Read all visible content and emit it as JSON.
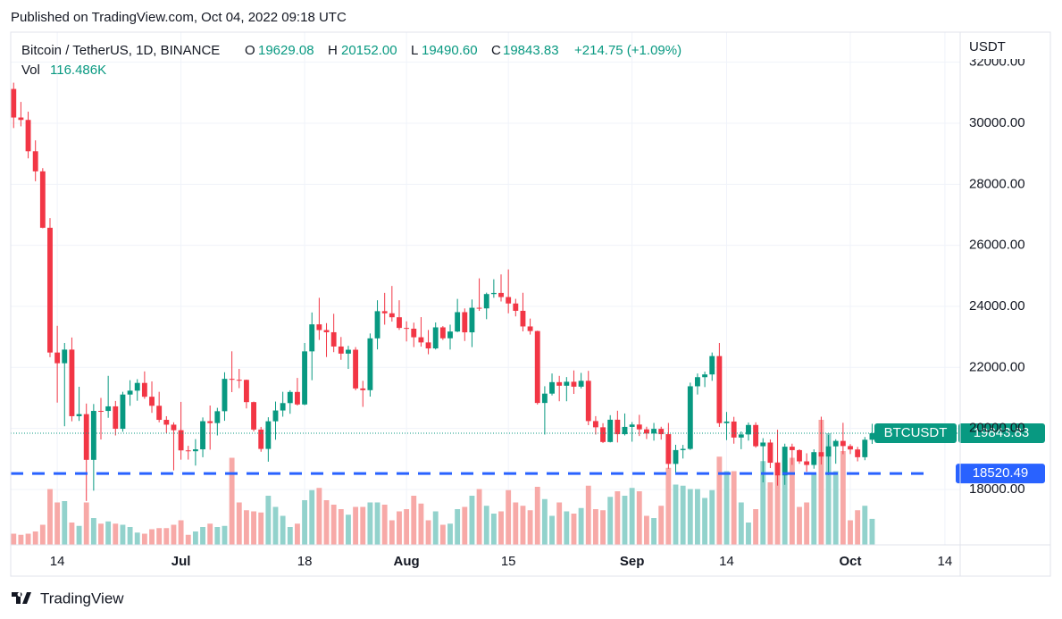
{
  "chart_data": {
    "type": "candlestick",
    "header": "Published on TradingView.com, Oct 04, 2022 09:18 UTC",
    "symbol": "Bitcoin / TetherUS, 1D, BINANCE",
    "ohlc_names": [
      "O",
      "H",
      "L",
      "C"
    ],
    "ohlc_labels": [
      "19629.08",
      "20152.00",
      "19490.60",
      "19843.83"
    ],
    "change_label": "+214.75 (+1.09%)",
    "volume_name": "Vol",
    "volume_label": "116.486K",
    "axis_unit": "USDT",
    "brand": "TradingView",
    "up_color": "#089981",
    "down_color": "#f23645",
    "volume_up_color": "#92d2cc",
    "volume_down_color": "#f7a9a7",
    "candles": [
      [
        31125,
        31330,
        29844,
        30189
      ],
      [
        30189,
        30700,
        29900,
        30110
      ],
      [
        30110,
        30380,
        28850,
        29084
      ],
      [
        29084,
        29440,
        28100,
        28425
      ],
      [
        28425,
        28530,
        26560,
        26575
      ],
      [
        26575,
        26895,
        22335,
        22487
      ],
      [
        22487,
        23362,
        20846,
        22136
      ],
      [
        22136,
        22800,
        20071,
        22583
      ],
      [
        22583,
        22980,
        20233,
        20401
      ],
      [
        20401,
        21365,
        20246,
        20468
      ],
      [
        20468,
        20815,
        17622,
        18970
      ],
      [
        18970,
        20800,
        17960,
        20574
      ],
      [
        20574,
        21000,
        19637,
        20573
      ],
      [
        20573,
        21723,
        20348,
        20723
      ],
      [
        20723,
        20900,
        19770,
        19988
      ],
      [
        19988,
        21200,
        19890,
        21110
      ],
      [
        21110,
        21580,
        20741,
        21237
      ],
      [
        21237,
        21614,
        20906,
        21491
      ],
      [
        21491,
        21868,
        20970,
        21038
      ],
      [
        21038,
        21540,
        20510,
        20742
      ],
      [
        20742,
        21200,
        20200,
        20281
      ],
      [
        20281,
        20400,
        19850,
        20123
      ],
      [
        20123,
        20200,
        18626,
        19942
      ],
      [
        19942,
        20870,
        18975,
        19280
      ],
      [
        19280,
        19430,
        18978,
        19252
      ],
      [
        19252,
        19650,
        18782,
        19315
      ],
      [
        19315,
        20360,
        19055,
        20236
      ],
      [
        20236,
        20750,
        19304,
        20175
      ],
      [
        20175,
        20675,
        19770,
        20564
      ],
      [
        20564,
        21840,
        20250,
        21624
      ],
      [
        21624,
        22527,
        21189,
        21594
      ],
      [
        21594,
        21950,
        21320,
        21591
      ],
      [
        21591,
        21600,
        20655,
        20862
      ],
      [
        20862,
        20880,
        19901,
        19963
      ],
      [
        19963,
        20050,
        19235,
        19328
      ],
      [
        19328,
        20366,
        18910,
        20234
      ],
      [
        20234,
        20880,
        19630,
        20588
      ],
      [
        20588,
        21200,
        20385,
        20830
      ],
      [
        20830,
        21250,
        20480,
        21195
      ],
      [
        21195,
        21655,
        20750,
        20785
      ],
      [
        20785,
        22800,
        20760,
        22525
      ],
      [
        22525,
        23800,
        21580,
        23410
      ],
      [
        23410,
        24280,
        22900,
        23223
      ],
      [
        23223,
        23450,
        22340,
        23152
      ],
      [
        23152,
        23757,
        22500,
        22684
      ],
      [
        22684,
        22996,
        22250,
        22451
      ],
      [
        22451,
        22707,
        21950,
        22579
      ],
      [
        22579,
        22665,
        21250,
        21310
      ],
      [
        21310,
        21560,
        20706,
        21254
      ],
      [
        21254,
        23112,
        21043,
        22952
      ],
      [
        22952,
        24200,
        22590,
        23842
      ],
      [
        23842,
        24443,
        23400,
        23773
      ],
      [
        23773,
        24668,
        23500,
        23643
      ],
      [
        23643,
        24200,
        23227,
        23293
      ],
      [
        23293,
        23510,
        22850,
        23268
      ],
      [
        23268,
        23466,
        22665,
        22987
      ],
      [
        22987,
        23647,
        22681,
        22818
      ],
      [
        22818,
        23226,
        22430,
        22622
      ],
      [
        22622,
        23472,
        22587,
        23312
      ],
      [
        23312,
        23354,
        22900,
        22954
      ],
      [
        22954,
        23400,
        22585,
        23175
      ],
      [
        23175,
        24245,
        23155,
        23810
      ],
      [
        23810,
        23933,
        22865,
        23149
      ],
      [
        23149,
        24226,
        22664,
        23954
      ],
      [
        23954,
        24918,
        23852,
        23934
      ],
      [
        23934,
        24450,
        23580,
        24403
      ],
      [
        24403,
        24888,
        24281,
        24441
      ],
      [
        24441,
        25047,
        24160,
        24305
      ],
      [
        24305,
        25211,
        23773,
        24094
      ],
      [
        24094,
        24247,
        23671,
        23854
      ],
      [
        23854,
        24446,
        23180,
        23342
      ],
      [
        23342,
        23600,
        23076,
        23191
      ],
      [
        23191,
        23203,
        20783,
        20834
      ],
      [
        20834,
        21382,
        19800,
        21140
      ],
      [
        21140,
        21800,
        21080,
        21516
      ],
      [
        21516,
        21722,
        20890,
        21399
      ],
      [
        21399,
        21683,
        20890,
        21529
      ],
      [
        21529,
        21900,
        21131,
        21368
      ],
      [
        21368,
        21820,
        21310,
        21560
      ],
      [
        21560,
        21886,
        20107,
        20241
      ],
      [
        20241,
        20402,
        19800,
        20037
      ],
      [
        20037,
        20171,
        19520,
        19555
      ],
      [
        19555,
        20433,
        19540,
        20285
      ],
      [
        20285,
        20580,
        19540,
        19811
      ],
      [
        19811,
        20490,
        19770,
        20050
      ],
      [
        20050,
        20208,
        19565,
        20127
      ],
      [
        20127,
        20445,
        19750,
        19969
      ],
      [
        19969,
        20056,
        19652,
        19832
      ],
      [
        19832,
        20180,
        19600,
        19986
      ],
      [
        19986,
        20055,
        19633,
        19812
      ],
      [
        19812,
        20180,
        18680,
        18837
      ],
      [
        18837,
        19464,
        18540,
        19290
      ],
      [
        19290,
        19460,
        19013,
        19329
      ],
      [
        19329,
        21500,
        19297,
        21381
      ],
      [
        21381,
        21800,
        21111,
        21680
      ],
      [
        21680,
        21860,
        21355,
        21769
      ],
      [
        21769,
        22488,
        21560,
        22371
      ],
      [
        22371,
        22800,
        20050,
        20173
      ],
      [
        20173,
        20540,
        19617,
        20226
      ],
      [
        20226,
        20380,
        19500,
        19701
      ],
      [
        19701,
        19900,
        19320,
        19803
      ],
      [
        19803,
        20193,
        19600,
        20113
      ],
      [
        20113,
        20200,
        19370,
        19416
      ],
      [
        19416,
        19680,
        18232,
        19537
      ],
      [
        19537,
        19640,
        18700,
        18875
      ],
      [
        18875,
        19956,
        18125,
        18461
      ],
      [
        18461,
        19500,
        18152,
        19401
      ],
      [
        19401,
        19500,
        18805,
        19289
      ],
      [
        19289,
        19316,
        18840,
        18920
      ],
      [
        18920,
        19185,
        18580,
        18803
      ],
      [
        18803,
        19315,
        18680,
        19222
      ],
      [
        19222,
        20385,
        18816,
        19079
      ],
      [
        19079,
        19790,
        18471,
        19412
      ],
      [
        19412,
        19645,
        18843,
        19591
      ],
      [
        19591,
        20185,
        19155,
        19422
      ],
      [
        19422,
        19484,
        19160,
        19310
      ],
      [
        19310,
        19395,
        18920,
        19057
      ],
      [
        19057,
        19719,
        18958,
        19629
      ],
      [
        19629.08,
        20152.0,
        19490.6,
        19843.83
      ]
    ],
    "volume": [
      50,
      45,
      50,
      60,
      90,
      250,
      190,
      196,
      100,
      85,
      190,
      120,
      95,
      105,
      95,
      90,
      80,
      55,
      50,
      70,
      75,
      75,
      90,
      110,
      45,
      60,
      80,
      95,
      80,
      85,
      390,
      190,
      155,
      150,
      145,
      220,
      170,
      130,
      80,
      95,
      200,
      245,
      255,
      200,
      180,
      160,
      135,
      170,
      170,
      190,
      190,
      180,
      110,
      150,
      160,
      220,
      185,
      110,
      150,
      90,
      95,
      160,
      170,
      220,
      250,
      175,
      140,
      150,
      245,
      190,
      175,
      155,
      260,
      205,
      130,
      190,
      150,
      140,
      165,
      265,
      160,
      155,
      215,
      240,
      220,
      255,
      240,
      130,
      120,
      175,
      345,
      270,
      265,
      250,
      250,
      210,
      245,
      395,
      330,
      330,
      190,
      100,
      160,
      375,
      280,
      370,
      380,
      390,
      170,
      190,
      320,
      560,
      500,
      330,
      420,
      110,
      155,
      175,
      116.486
    ],
    "volume_ylim": [
      0,
      600
    ],
    "xlim": [
      -0.4,
      130.1
    ],
    "xticks": [
      {
        "value": 6,
        "label": "14"
      },
      {
        "value": 23,
        "label": "Jul"
      },
      {
        "value": 40,
        "label": "18"
      },
      {
        "value": 54,
        "label": "Aug"
      },
      {
        "value": 68,
        "label": "15"
      },
      {
        "value": 85,
        "label": "Sep"
      },
      {
        "value": 98,
        "label": "14"
      },
      {
        "value": 115,
        "label": "Oct"
      },
      {
        "value": 128,
        "label": "14"
      }
    ],
    "ylim": [
      16184,
      32986
    ],
    "yticks": [
      {
        "value": 18000,
        "label": "18000.00"
      },
      {
        "value": 20000,
        "label": "20000.00"
      },
      {
        "value": 22000,
        "label": "22000.00"
      },
      {
        "value": 24000,
        "label": "24000.00"
      },
      {
        "value": 26000,
        "label": "26000.00"
      },
      {
        "value": 28000,
        "label": "28000.00"
      },
      {
        "value": 30000,
        "label": "30000.00"
      },
      {
        "value": 32000,
        "label": "32000.00"
      }
    ],
    "grid": true,
    "last_price": {
      "tag": "BTCUSDT",
      "label": "19843.83"
    },
    "hline": {
      "value": 18520.49,
      "label": "18520.49",
      "color": "#2962ff"
    }
  }
}
